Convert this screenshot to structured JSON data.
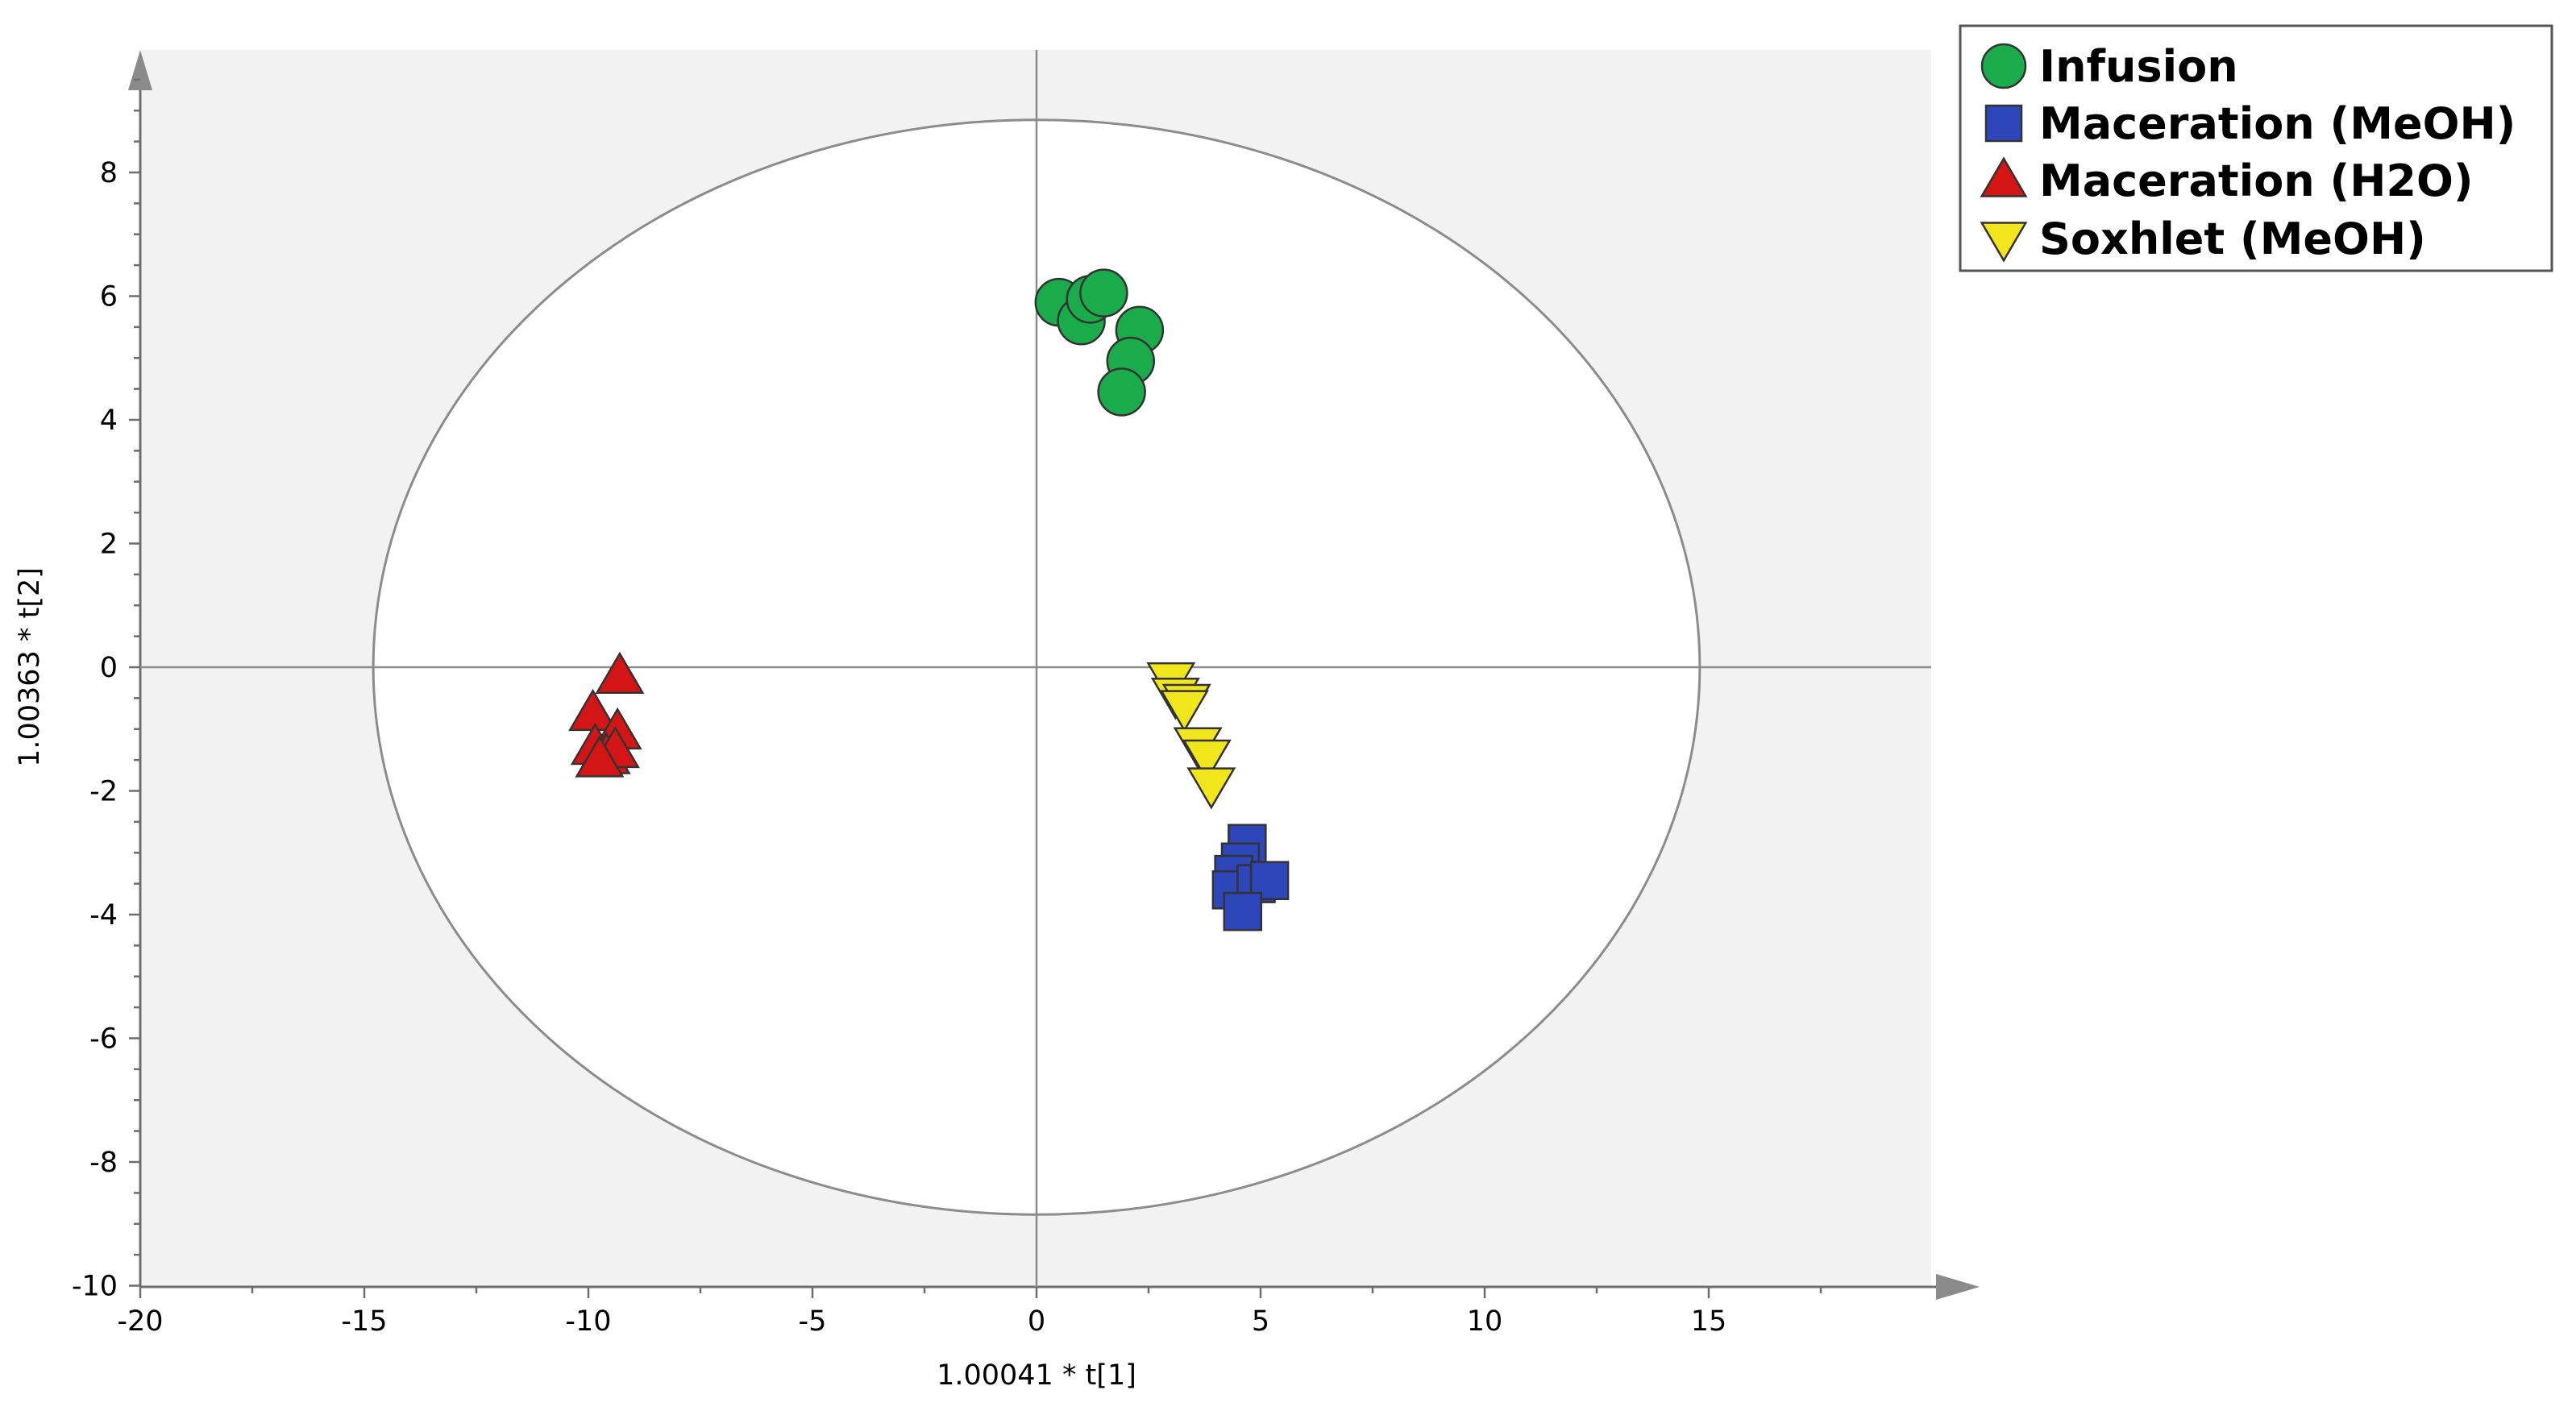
{
  "chart_data": {
    "type": "scatter",
    "xlabel": "1.00041 * t[1]",
    "ylabel": "1.00363 * t[2]",
    "xlim": [
      -20,
      20
    ],
    "ylim": [
      -10,
      10
    ],
    "x_ticks": [
      "-20",
      "-15",
      "-10",
      "-5",
      "0",
      "5",
      "10",
      "15"
    ],
    "y_ticks": [
      "-10",
      "-8",
      "-6",
      "-4",
      "-2",
      "0",
      "2",
      "4",
      "6",
      "8"
    ],
    "grid": false,
    "hotelling_ellipse": {
      "center": [
        0,
        0
      ],
      "x_radius": 14.8,
      "y_radius": 8.85
    },
    "legend_position": "top-right",
    "series": [
      {
        "name": "Infusion",
        "marker": "circle",
        "color": "#1aab4a",
        "points": [
          [
            0.5,
            5.9
          ],
          [
            1.0,
            5.6
          ],
          [
            1.2,
            5.95
          ],
          [
            1.5,
            6.05
          ],
          [
            2.3,
            5.45
          ],
          [
            2.1,
            4.95
          ],
          [
            1.9,
            4.45
          ]
        ]
      },
      {
        "name": "Maceration (MeOH)",
        "marker": "square",
        "color": "#2d46b9",
        "points": [
          [
            4.7,
            -2.85
          ],
          [
            4.55,
            -3.15
          ],
          [
            4.4,
            -3.35
          ],
          [
            4.35,
            -3.6
          ],
          [
            4.9,
            -3.5
          ],
          [
            5.2,
            -3.45
          ],
          [
            4.6,
            -3.95
          ]
        ]
      },
      {
        "name": "Maceration (H2O)",
        "marker": "triangle-up",
        "color": "#d41515",
        "points": [
          [
            -9.3,
            -0.15
          ],
          [
            -9.9,
            -0.75
          ],
          [
            -9.35,
            -1.05
          ],
          [
            -9.85,
            -1.3
          ],
          [
            -9.6,
            -1.45
          ],
          [
            -9.4,
            -1.35
          ],
          [
            -9.75,
            -1.5
          ]
        ]
      },
      {
        "name": "Soxhlet (MeOH)",
        "marker": "triangle-down",
        "color": "#f1e61c",
        "points": [
          [
            3.0,
            -0.2
          ],
          [
            3.1,
            -0.45
          ],
          [
            3.35,
            -0.55
          ],
          [
            3.3,
            -0.65
          ],
          [
            3.6,
            -1.25
          ],
          [
            3.8,
            -1.45
          ],
          [
            3.9,
            -1.9
          ]
        ]
      }
    ]
  }
}
